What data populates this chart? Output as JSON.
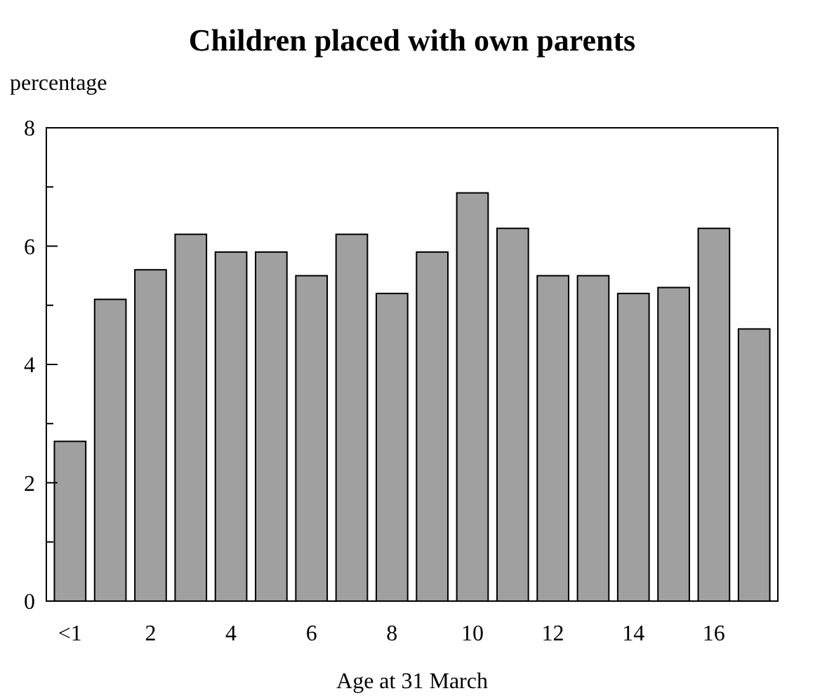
{
  "chart_data": {
    "type": "bar",
    "title": "Children placed with own parents",
    "ylabel": "percentage",
    "xlabel": "Age at 31 March",
    "categories": [
      "<1",
      null,
      "2",
      null,
      "4",
      null,
      "6",
      null,
      "8",
      null,
      "10",
      null,
      "12",
      null,
      "14",
      null,
      "16",
      null
    ],
    "values": [
      2.7,
      5.1,
      5.6,
      6.2,
      5.9,
      5.9,
      5.5,
      6.2,
      5.2,
      5.9,
      6.9,
      6.3,
      5.5,
      5.5,
      5.2,
      5.3,
      6.3,
      4.6
    ],
    "color": "#a0a0a0",
    "ylim": [
      0,
      8
    ],
    "yticks": [
      0,
      {
        "value": 1,
        "label": null
      },
      2,
      {
        "value": 3,
        "label": null
      },
      4,
      {
        "value": 5,
        "label": null
      },
      6,
      {
        "value": 7,
        "label": null
      },
      8
    ],
    "grid": false
  }
}
